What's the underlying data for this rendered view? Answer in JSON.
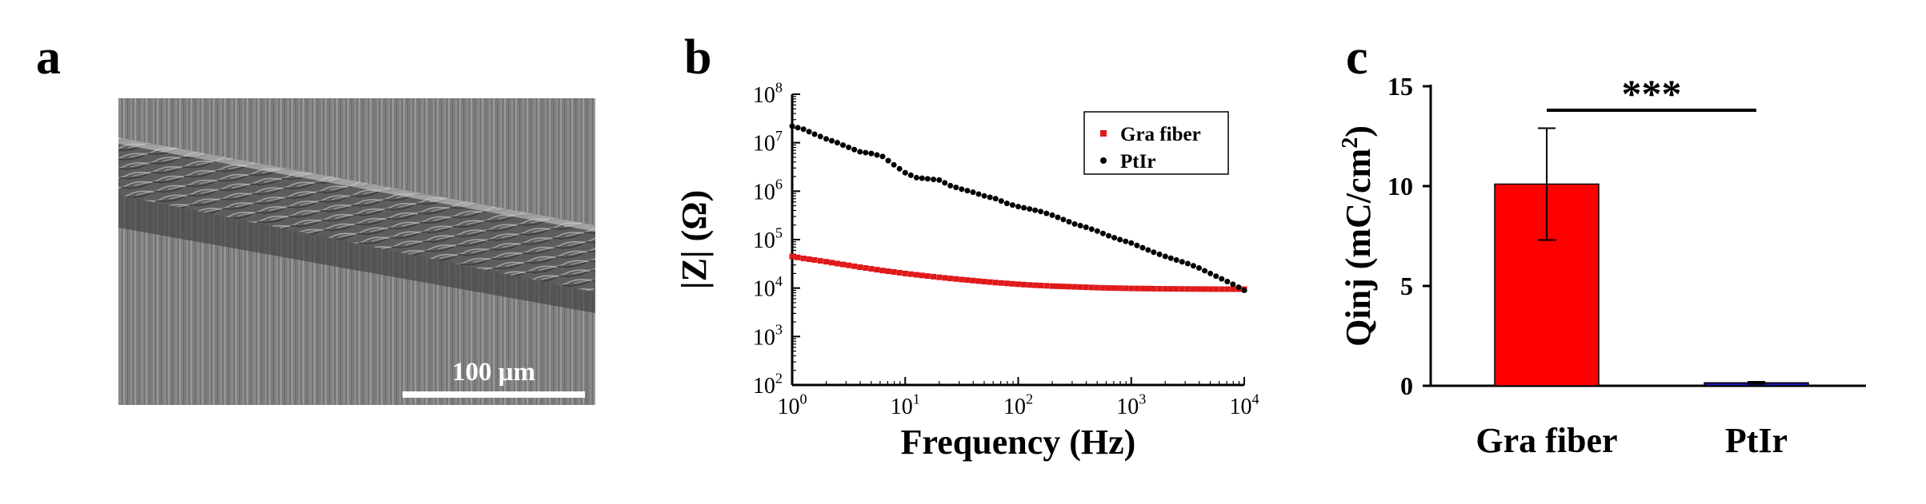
{
  "panels": {
    "a": {
      "label": "a",
      "scale_bar": {
        "label": "100 μm"
      }
    },
    "b": {
      "label": "b"
    },
    "c": {
      "label": "c"
    }
  },
  "chart_data": [
    {
      "panel": "b",
      "type": "scatter",
      "xlabel": "Frequency (Hz)",
      "ylabel": "|Z| (Ω)",
      "xscale": "log",
      "yscale": "log",
      "xlim": [
        1,
        10000
      ],
      "ylim": [
        100,
        100000000
      ],
      "xticks": [
        1,
        10,
        100,
        1000,
        10000
      ],
      "yticks": [
        100,
        1000,
        10000,
        100000,
        1000000,
        10000000,
        100000000
      ],
      "xtick_labels": [
        {
          "base": "10",
          "exp": "0"
        },
        {
          "base": "10",
          "exp": "1"
        },
        {
          "base": "10",
          "exp": "2"
        },
        {
          "base": "10",
          "exp": "3"
        },
        {
          "base": "10",
          "exp": "4"
        }
      ],
      "ytick_labels": [
        {
          "base": "10",
          "exp": "2"
        },
        {
          "base": "10",
          "exp": "3"
        },
        {
          "base": "10",
          "exp": "4"
        },
        {
          "base": "10",
          "exp": "5"
        },
        {
          "base": "10",
          "exp": "6"
        },
        {
          "base": "10",
          "exp": "7"
        },
        {
          "base": "10",
          "exp": "8"
        }
      ],
      "grid": false,
      "legend": "top-right",
      "series": [
        {
          "name": "Gra fiber",
          "color": "#e0191b",
          "marker": "square",
          "x": [
            1,
            1.26,
            1.58,
            2,
            2.51,
            3.16,
            3.98,
            5.01,
            6.31,
            7.94,
            10,
            12.6,
            15.8,
            20,
            25.1,
            31.6,
            39.8,
            50.1,
            63.1,
            79.4,
            100,
            126,
            158,
            200,
            251,
            316,
            398,
            501,
            631,
            794,
            1000,
            1260,
            1580,
            2000,
            2510,
            3160,
            3980,
            5010,
            6310,
            7940,
            10000
          ],
          "y": [
            45000,
            41000,
            38000,
            35000,
            32000,
            29500,
            27000,
            25000,
            23000,
            21500,
            20000,
            18800,
            17700,
            16700,
            15800,
            15000,
            14300,
            13600,
            13000,
            12500,
            12000,
            11600,
            11300,
            11000,
            10800,
            10600,
            10400,
            10200,
            10050,
            9950,
            9850,
            9780,
            9720,
            9660,
            9620,
            9580,
            9550,
            9530,
            9510,
            9500,
            9500
          ]
        },
        {
          "name": "PtIr",
          "color": "#000000",
          "marker": "circle",
          "x": [
            1,
            1.26,
            1.58,
            2,
            2.51,
            3.16,
            3.98,
            5.01,
            6.31,
            7.94,
            10,
            12.6,
            15.8,
            20,
            25.1,
            31.6,
            39.8,
            50.1,
            63.1,
            79.4,
            100,
            126,
            158,
            200,
            251,
            316,
            398,
            501,
            631,
            794,
            1000,
            1260,
            1580,
            2000,
            2510,
            3160,
            3980,
            5010,
            6310,
            7940,
            10000
          ],
          "y": [
            22000000,
            19000000,
            15000000,
            12000000,
            10000000,
            8000000,
            6500000,
            6000000,
            5200000,
            3500000,
            2400000,
            1900000,
            1800000,
            1700000,
            1300000,
            1100000,
            950000,
            800000,
            700000,
            560000,
            480000,
            430000,
            380000,
            320000,
            260000,
            210000,
            180000,
            150000,
            120000,
            100000,
            85000,
            68000,
            55000,
            45000,
            38000,
            32000,
            26000,
            20000,
            15500,
            12000,
            9000
          ]
        }
      ]
    },
    {
      "panel": "c",
      "type": "bar",
      "categories": [
        "Gra fiber",
        "PtIr"
      ],
      "values": [
        10.1,
        0.15
      ],
      "errors": [
        2.8,
        0.05
      ],
      "colors": [
        "#ff0000",
        "#1a1aa6"
      ],
      "ylabel": "Qinj (mC/cm",
      "ylabel_sup": "2",
      "ylabel_end": ")",
      "ylim": [
        0,
        15
      ],
      "yticks": [
        0,
        5,
        10,
        15
      ],
      "significance": {
        "between": [
          0,
          1
        ],
        "label": "***"
      }
    }
  ]
}
